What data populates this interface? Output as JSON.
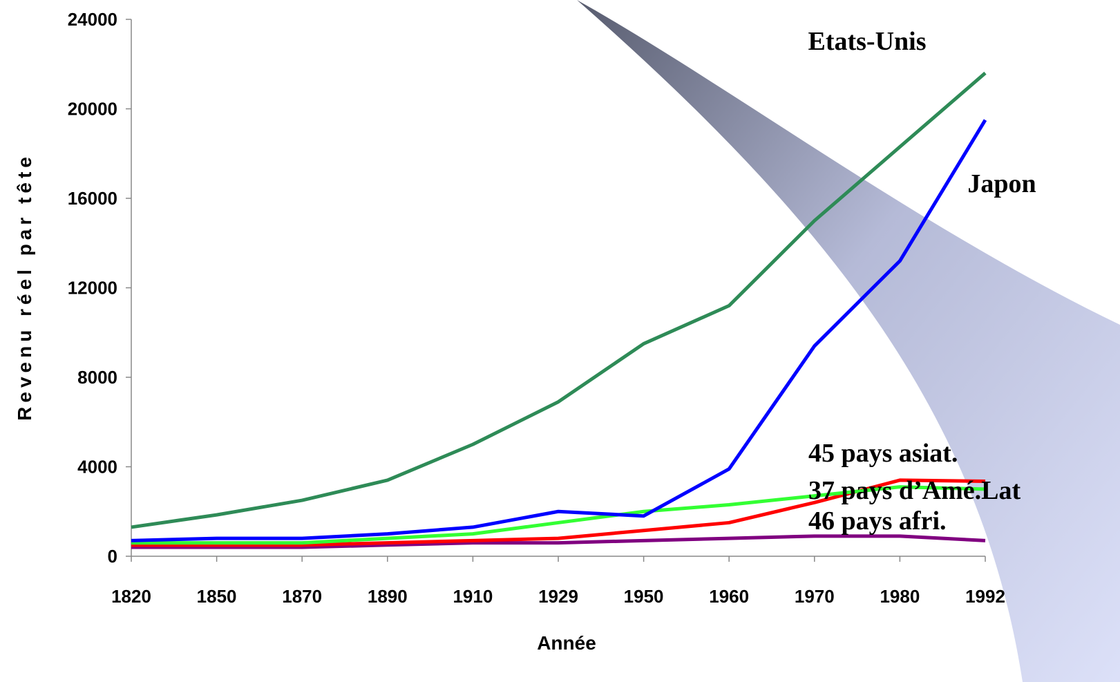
{
  "chart_data": {
    "type": "line",
    "x_label": "Année",
    "y_label": "Revenu réel par tête",
    "categories": [
      "1820",
      "1850",
      "1870",
      "1890",
      "1910",
      "1929",
      "1950",
      "1960",
      "1970",
      "1980",
      "1992"
    ],
    "ylim": [
      0,
      24000
    ],
    "yticks": [
      0,
      4000,
      8000,
      12000,
      16000,
      20000,
      24000
    ],
    "series": [
      {
        "name": "Etats-Unis",
        "color": "#2e8b57",
        "values": [
          1300,
          1850,
          2500,
          3400,
          5000,
          6900,
          9500,
          11200,
          15000,
          18300,
          21600
        ]
      },
      {
        "name": "Japon",
        "color": "#0000ff",
        "values": [
          700,
          800,
          800,
          1000,
          1300,
          2000,
          1800,
          3900,
          9400,
          13200,
          19500
        ]
      },
      {
        "name": "45 pays asiat.",
        "color": "#ff0000",
        "values": [
          500,
          500,
          500,
          600,
          700,
          800,
          1150,
          1500,
          2400,
          3400,
          3350
        ]
      },
      {
        "name": "37 pays d’Amé.Lat",
        "color": "#33ff33",
        "values": [
          600,
          600,
          600,
          800,
          1000,
          1500,
          2000,
          2300,
          2700,
          3100,
          3000
        ]
      },
      {
        "name": "46 pays afri.",
        "color": "#800080",
        "values": [
          400,
          400,
          400,
          500,
          600,
          600,
          700,
          800,
          900,
          900,
          700
        ]
      }
    ]
  }
}
